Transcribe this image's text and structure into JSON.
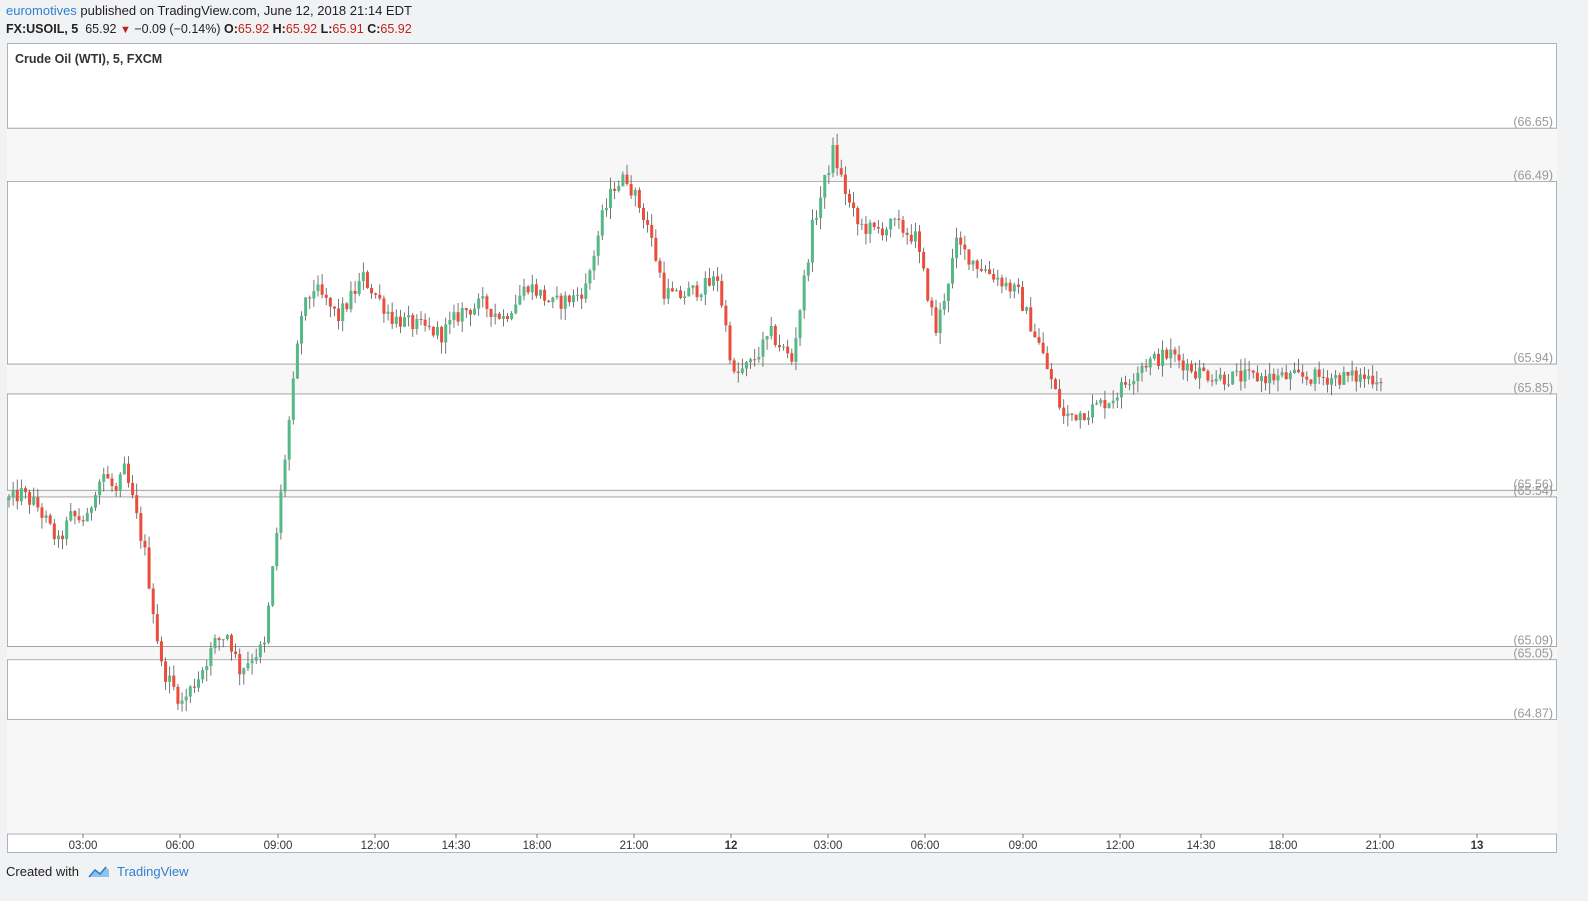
{
  "header": {
    "author": "euromotives",
    "published_text": " published on TradingView.com, June 12, 2018 21:14 EDT",
    "symbol": "FX:USOIL, 5",
    "last_price": "65.92",
    "change": "−0.09 (−0.14%)",
    "o_label": "O:",
    "o_value": "65.92",
    "h_label": "H:",
    "h_value": "65.92",
    "l_label": "L:",
    "l_value": "65.91",
    "c_label": "C:",
    "c_value": "65.92"
  },
  "footer": {
    "created_with": "Created with",
    "brand": "TradingView"
  },
  "colors": {
    "up": "#53b987",
    "down": "#eb4d3c",
    "wick": "#555555",
    "level_line": "#999999",
    "level_label": "#999999",
    "band": "#f7f7f7"
  },
  "chart_data": {
    "type": "line",
    "title": "Crude Oil (WTI), 5, FXCM",
    "chart_style": "candlestick (5-minute)",
    "ylim": [
      64.7,
      66.78
    ],
    "x_ticks": [
      "03:00",
      "06:00",
      "09:00",
      "12:00",
      "14:30",
      "18:00",
      "21:00",
      "12",
      "03:00",
      "06:00",
      "09:00",
      "12:00",
      "14:30",
      "18:00",
      "21:00",
      "13"
    ],
    "x_ticks_bold": [
      "12",
      "13"
    ],
    "levels": [
      {
        "label": "(66.65)",
        "value": 66.65
      },
      {
        "label": "(66.49)",
        "value": 66.49
      },
      {
        "label": "(65.94)",
        "value": 65.94
      },
      {
        "label": "(65.85)",
        "value": 65.85
      },
      {
        "label": "(65.56)",
        "value": 65.56
      },
      {
        "label": "(65.54)",
        "value": 65.54
      },
      {
        "label": "(65.09)",
        "value": 65.09
      },
      {
        "label": "(65.05)",
        "value": 65.05
      },
      {
        "label": "(64.87)",
        "value": 64.87
      }
    ],
    "shaded_bands": [
      [
        66.49,
        66.65
      ],
      [
        65.85,
        65.94
      ],
      [
        65.54,
        65.56
      ],
      [
        65.05,
        65.09
      ],
      [
        64.7,
        64.87
      ]
    ],
    "price_path": {
      "x": [
        0,
        3,
        7,
        12,
        15,
        19,
        21,
        23,
        26,
        28,
        30,
        33,
        35,
        37,
        42,
        46,
        50,
        53,
        56,
        59,
        62,
        67,
        71,
        74,
        80,
        86,
        93,
        100,
        105,
        110,
        115,
        120,
        126,
        132,
        137,
        140,
        144,
        147,
        150,
        155,
        159,
        162,
        166,
        170,
        172,
        176,
        180,
        185,
        190,
        195,
        200,
        204,
        206,
        210,
        215,
        220,
        225,
        230,
        235,
        240,
        245,
        250,
        256,
        262,
        268,
        275,
        282,
        288,
        294,
        300,
        306,
        311,
        316,
        320,
        324,
        328,
        331,
        333
      ],
      "y": [
        65.53,
        65.55,
        65.51,
        65.4,
        65.48,
        65.47,
        65.57,
        65.61,
        65.55,
        65.62,
        65.53,
        65.37,
        65.2,
        65.03,
        64.92,
        65.0,
        65.1,
        65.13,
        65.02,
        65.06,
        65.09,
        65.66,
        66.09,
        66.17,
        66.08,
        66.2,
        66.08,
        66.05,
        66.03,
        66.1,
        66.12,
        66.08,
        66.18,
        66.12,
        66.14,
        66.17,
        66.38,
        66.48,
        66.5,
        66.36,
        66.16,
        66.14,
        66.16,
        66.18,
        66.2,
        65.9,
        65.94,
        66.03,
        65.95,
        66.35,
        66.58,
        66.42,
        66.36,
        66.34,
        66.36,
        66.32,
        66.04,
        66.3,
        66.24,
        66.2,
        66.15,
        66.0,
        65.78,
        65.8,
        65.84,
        65.94,
        65.97,
        65.92,
        65.9,
        65.9,
        65.9,
        65.9,
        65.9,
        65.9,
        65.9,
        65.9,
        65.9,
        65.9
      ]
    }
  }
}
